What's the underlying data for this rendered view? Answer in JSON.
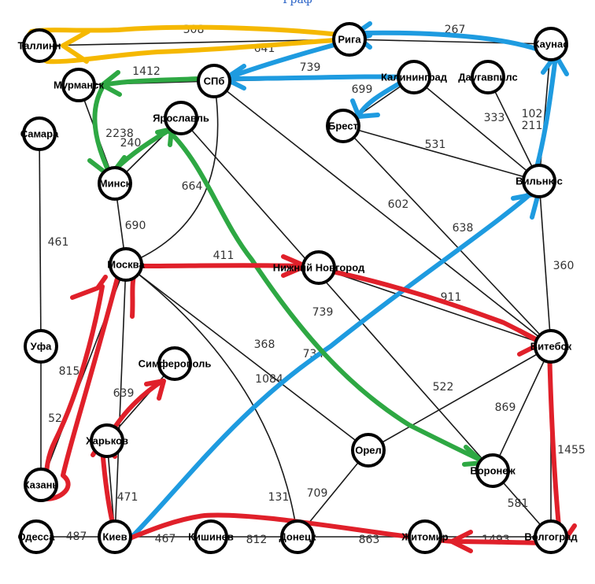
{
  "title": "Граф",
  "colors": {
    "yellow": "#f5b800",
    "blue": "#1e9be0",
    "green": "#2ea843",
    "red": "#e0202a",
    "edge": "#1a1a1a",
    "title": "#2a63c7"
  },
  "nodes": {
    "tallinn": "Таллинн",
    "riga": "Рига",
    "kaunas": "Каунас",
    "murmansk": "Мурманск",
    "spb": "СПб",
    "kaliningrad": "Калининград",
    "daugavpils": "Даугавпилс",
    "samara": "Самара",
    "yaroslavl": "Ярославль",
    "brest": "Брест",
    "minsk": "Минск",
    "vilnius": "Вильнюс",
    "moscow": "Москва",
    "nnovgorod": "Нижний Новгород",
    "ufa": "Уфа",
    "vitebsk": "Витебск",
    "simferopol": "Симферополь",
    "kharkov": "Харьков",
    "orel": "Орел",
    "voronezh": "Воронеж",
    "kazan": "Казань",
    "odessa": "Одесса",
    "kiev": "Киев",
    "kishinev": "Кишинев",
    "donetsk": "Донецк",
    "zhitomir": "Житомир",
    "volgograd": "Волгоград"
  },
  "weights": {
    "tallinn_riga": "308",
    "riga_kaunas": "267",
    "riga_spb": "641",
    "spb_kaliningrad": "739",
    "murmansk_spb": "1412",
    "spb_brest": "699",
    "kaliningrad_vilnius": "333",
    "kaunas_vilnius_a": "102",
    "kaunas_vilnius_b": "211",
    "murmansk_minsk": "2238",
    "minsk_yaroslavl": "240",
    "brest_vilnius": "531",
    "spb_moscow": "664",
    "spb_vitebsk": "602",
    "vilnius_kiev": "638",
    "minsk_moscow": "690",
    "samara_ufa": "461",
    "moscow_nnovgorod": "411",
    "nnovgorod_vitebsk": "911",
    "vilnius_vitebsk": "360",
    "yaroslavl_voronezh": "739",
    "moscow_orel": "368",
    "kiev_vilnius_lower": "734",
    "ufa_kazan": "815",
    "moscow_donetsk": "1084",
    "vitebsk_orel": "522",
    "kharkov_simferopol": "639",
    "vitebsk_voronezh": "869",
    "kazan_moscow": "52",
    "vitebsk_volgograd": "1455",
    "kiev_kharkov": "471",
    "moscow_kiev": "131",
    "orel_donetsk": "709",
    "voronezh_volgograd": "581",
    "odessa_kiev": "487",
    "kiev_kishinev": "467",
    "kishinev_donetsk": "812",
    "donetsk_zhitomir": "863",
    "zhitomir_volgograd": "1493"
  }
}
